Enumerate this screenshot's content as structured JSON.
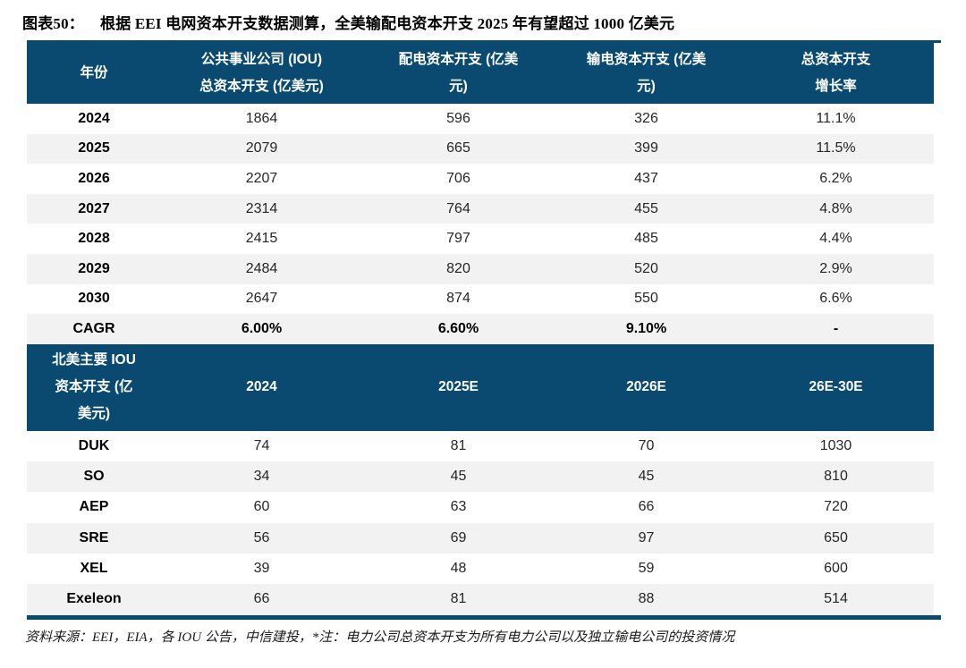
{
  "figure": {
    "label": "图表50：",
    "title": "根据 EEI 电网资本开支数据测算，全美输配电资本开支 2025 年有望超过 1000 亿美元"
  },
  "colors": {
    "navy": "#0a4a70",
    "stripe": "#f2f2f2",
    "header_text": "#ffffff",
    "body_text": "#262626"
  },
  "table1": {
    "headers": [
      {
        "lines": [
          "年份"
        ]
      },
      {
        "lines": [
          "公共事业公司 (IOU)",
          "总资本开支 (亿美元)"
        ]
      },
      {
        "lines": [
          "配电资本开支 (亿美",
          "元)"
        ]
      },
      {
        "lines": [
          "输电资本开支 (亿美",
          "元)"
        ]
      },
      {
        "lines": [
          "总资本开支",
          "增长率"
        ]
      }
    ],
    "rows": [
      {
        "label": "2024",
        "values": [
          "1864",
          "596",
          "326",
          "11.1%"
        ],
        "bold": false
      },
      {
        "label": "2025",
        "values": [
          "2079",
          "665",
          "399",
          "11.5%"
        ],
        "bold": false
      },
      {
        "label": "2026",
        "values": [
          "2207",
          "706",
          "437",
          "6.2%"
        ],
        "bold": false
      },
      {
        "label": "2027",
        "values": [
          "2314",
          "764",
          "455",
          "4.8%"
        ],
        "bold": false
      },
      {
        "label": "2028",
        "values": [
          "2415",
          "797",
          "485",
          "4.4%"
        ],
        "bold": false
      },
      {
        "label": "2029",
        "values": [
          "2484",
          "820",
          "520",
          "2.9%"
        ],
        "bold": false
      },
      {
        "label": "2030",
        "values": [
          "2647",
          "874",
          "550",
          "6.6%"
        ],
        "bold": false
      },
      {
        "label": "CAGR",
        "values": [
          "6.00%",
          "6.60%",
          "9.10%",
          "-"
        ],
        "bold": true
      }
    ]
  },
  "table2": {
    "headers": [
      {
        "lines": [
          "北美主要 IOU",
          "资本开支 (亿",
          "美元)"
        ]
      },
      {
        "lines": [
          "2024"
        ]
      },
      {
        "lines": [
          "2025E"
        ]
      },
      {
        "lines": [
          "2026E"
        ]
      },
      {
        "lines": [
          "26E-30E"
        ]
      }
    ],
    "rows": [
      {
        "label": "DUK",
        "values": [
          "74",
          "81",
          "70",
          "1030"
        ],
        "bold": false
      },
      {
        "label": "SO",
        "values": [
          "34",
          "45",
          "45",
          "810"
        ],
        "bold": false
      },
      {
        "label": "AEP",
        "values": [
          "60",
          "63",
          "66",
          "720"
        ],
        "bold": false
      },
      {
        "label": "SRE",
        "values": [
          "56",
          "69",
          "97",
          "650"
        ],
        "bold": false
      },
      {
        "label": "XEL",
        "values": [
          "39",
          "48",
          "59",
          "600"
        ],
        "bold": false
      },
      {
        "label": "Exeleon",
        "values": [
          "66",
          "81",
          "88",
          "514"
        ],
        "bold": false
      }
    ]
  },
  "footer": "资料来源：EEI，EIA，各 IOU 公告，中信建投，*注：电力公司总资本开支为所有电力公司以及独立输电公司的投资情况",
  "chart_data": [
    {
      "type": "table",
      "title": "图表50：根据 EEI 电网资本开支数据测算，全美输配电资本开支 2025 年有望超过 1000 亿美元",
      "columns": [
        "年份",
        "公共事业公司 (IOU) 总资本开支 (亿美元)",
        "配电资本开支 (亿美元)",
        "输电资本开支 (亿美元)",
        "总资本开支增长率"
      ],
      "rows": [
        [
          "2024",
          1864,
          596,
          326,
          "11.1%"
        ],
        [
          "2025",
          2079,
          665,
          399,
          "11.5%"
        ],
        [
          "2026",
          2207,
          706,
          437,
          "6.2%"
        ],
        [
          "2027",
          2314,
          764,
          455,
          "4.8%"
        ],
        [
          "2028",
          2415,
          797,
          485,
          "4.4%"
        ],
        [
          "2029",
          2484,
          820,
          520,
          "2.9%"
        ],
        [
          "2030",
          2647,
          874,
          550,
          "6.6%"
        ],
        [
          "CAGR",
          "6.00%",
          "6.60%",
          "9.10%",
          "-"
        ]
      ]
    },
    {
      "type": "table",
      "title": "北美主要 IOU 资本开支 (亿美元)",
      "columns": [
        "北美主要 IOU 资本开支 (亿美元)",
        "2024",
        "2025E",
        "2026E",
        "26E-30E"
      ],
      "rows": [
        [
          "DUK",
          74,
          81,
          70,
          1030
        ],
        [
          "SO",
          34,
          45,
          45,
          810
        ],
        [
          "AEP",
          60,
          63,
          66,
          720
        ],
        [
          "SRE",
          56,
          69,
          97,
          650
        ],
        [
          "XEL",
          39,
          48,
          59,
          600
        ],
        [
          "Exeleon",
          66,
          81,
          88,
          514
        ]
      ]
    }
  ]
}
